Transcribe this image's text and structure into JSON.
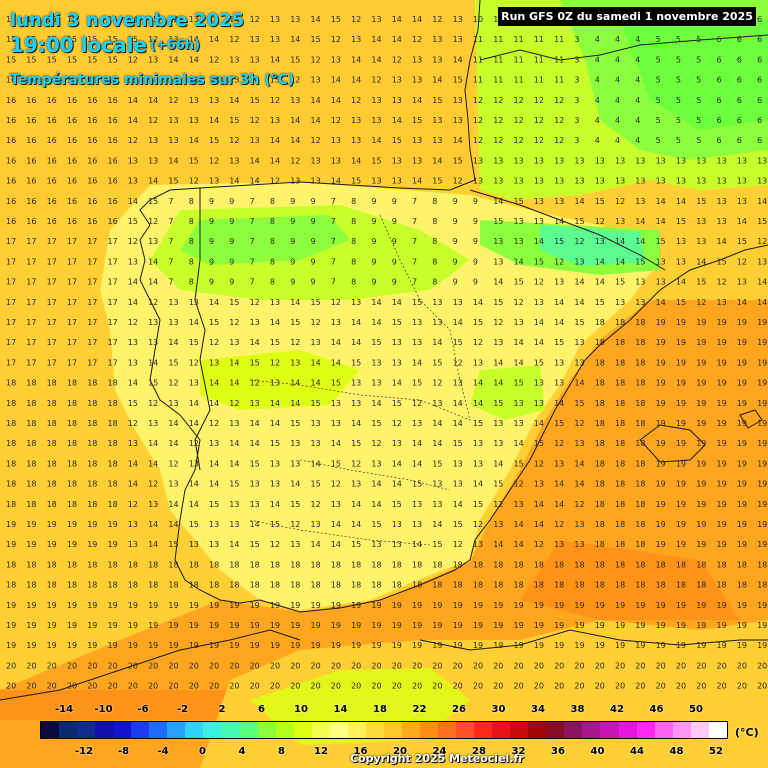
{
  "header": {
    "date": "lundi 3 novembre 2025",
    "time": "19:00 locale",
    "lead": "(+66h)",
    "parameter": "Températures minimales sur 3h (°C)",
    "run": "Run GFS 0Z du samedi 1 novembre 2025"
  },
  "legend": {
    "unit": "(°C)",
    "upper_ticks": [
      "-14",
      "-10",
      "-6",
      "-2",
      "2",
      "6",
      "10",
      "14",
      "18",
      "22",
      "26",
      "30",
      "34",
      "38",
      "42",
      "46",
      "50"
    ],
    "lower_ticks": [
      "-12",
      "-8",
      "-4",
      "0",
      "4",
      "8",
      "12",
      "16",
      "20",
      "24",
      "28",
      "32",
      "36",
      "40",
      "44",
      "48",
      "52"
    ],
    "colors": [
      "#0a0a3c",
      "#0c2a6e",
      "#102c8c",
      "#1010aa",
      "#1414cc",
      "#1c3cf0",
      "#1e6cff",
      "#28a0ff",
      "#30d2ff",
      "#3cf0e0",
      "#46fab4",
      "#5aff78",
      "#8cff3c",
      "#b4ff1e",
      "#dcff14",
      "#f0ff50",
      "#ffff82",
      "#fff05a",
      "#ffdc3c",
      "#ffc828",
      "#ffaa1e",
      "#ff8c14",
      "#ff6e1e",
      "#ff5028",
      "#ff2814",
      "#e61414",
      "#c80a0a",
      "#a50505",
      "#8c0a28",
      "#8c1460",
      "#aa148c",
      "#c814b4",
      "#e614dc",
      "#ff28f0",
      "#ff64f0",
      "#ff96f5",
      "#ffc8fa",
      "#ffffff"
    ]
  },
  "map": {
    "field_colors": {
      "cold": "#6cff3c",
      "cool": "#c8ff2a",
      "mild": "#fff36a",
      "warm": "#ffcf33",
      "hot": "#ffa51e"
    },
    "coast_color": "#1a1a1a"
  },
  "copyright": "Copyright 2025 Meteociel.fr"
}
